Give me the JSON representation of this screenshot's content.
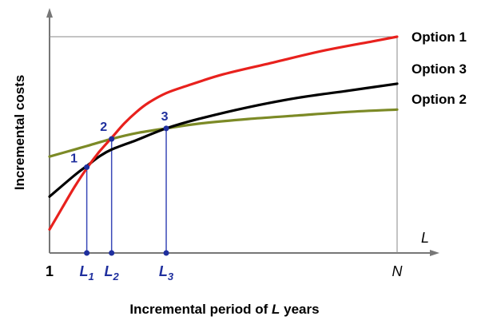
{
  "chart_data": {
    "type": "line",
    "title": "",
    "xlabel": {
      "text": "Incremental period of ",
      "var": "L",
      "suffix": " years"
    },
    "ylabel": "Incremental costs",
    "x_axis_symbol": "L",
    "x_ticks": [
      {
        "text": "1",
        "sub": "",
        "x": 1,
        "style": "plain"
      },
      {
        "text": "L",
        "sub": "1",
        "x": 2.5,
        "style": "blue"
      },
      {
        "text": "L",
        "sub": "2",
        "x": 3.5,
        "style": "blue"
      },
      {
        "text": "L",
        "sub": "3",
        "x": 5.7,
        "style": "blue"
      },
      {
        "text": "N",
        "sub": "",
        "x": 15,
        "style": "axis"
      }
    ],
    "xlim": [
      0,
      16.5
    ],
    "ylim": [
      0,
      100
    ],
    "grid": false,
    "legend": "right",
    "series": [
      {
        "name": "Option 1",
        "color": "#e8211d",
        "x": [
          1,
          1.5,
          2,
          2.5,
          3,
          3.5,
          4,
          4.5,
          5,
          5.7,
          6.5,
          8,
          10,
          12,
          14,
          15
        ],
        "y": [
          10,
          19,
          28,
          36,
          43,
          49,
          55,
          60,
          64,
          68,
          71,
          76,
          81,
          86,
          90,
          92
        ]
      },
      {
        "name": "Option 3",
        "color": "#000000",
        "x": [
          1,
          2,
          2.5,
          3,
          3.5,
          4.5,
          5.7,
          7,
          9,
          11,
          13,
          15
        ],
        "y": [
          24,
          33,
          37,
          41,
          44,
          48,
          53,
          57,
          62,
          66,
          69,
          72
        ]
      },
      {
        "name": "Option 2",
        "color": "#7c8a26",
        "x": [
          1,
          2,
          2.5,
          3.5,
          4.5,
          5.7,
          7,
          9,
          11,
          13,
          15
        ],
        "y": [
          41,
          44,
          45.5,
          48.5,
          51,
          53,
          55,
          57,
          58.5,
          60,
          61
        ]
      }
    ],
    "intersections": [
      {
        "label": "1",
        "x": 2.5,
        "y": 36.5
      },
      {
        "label": "2",
        "x": 3.5,
        "y": 48.5
      },
      {
        "label": "3",
        "x": 5.7,
        "y": 53
      }
    ],
    "reference_line_y": 92
  }
}
